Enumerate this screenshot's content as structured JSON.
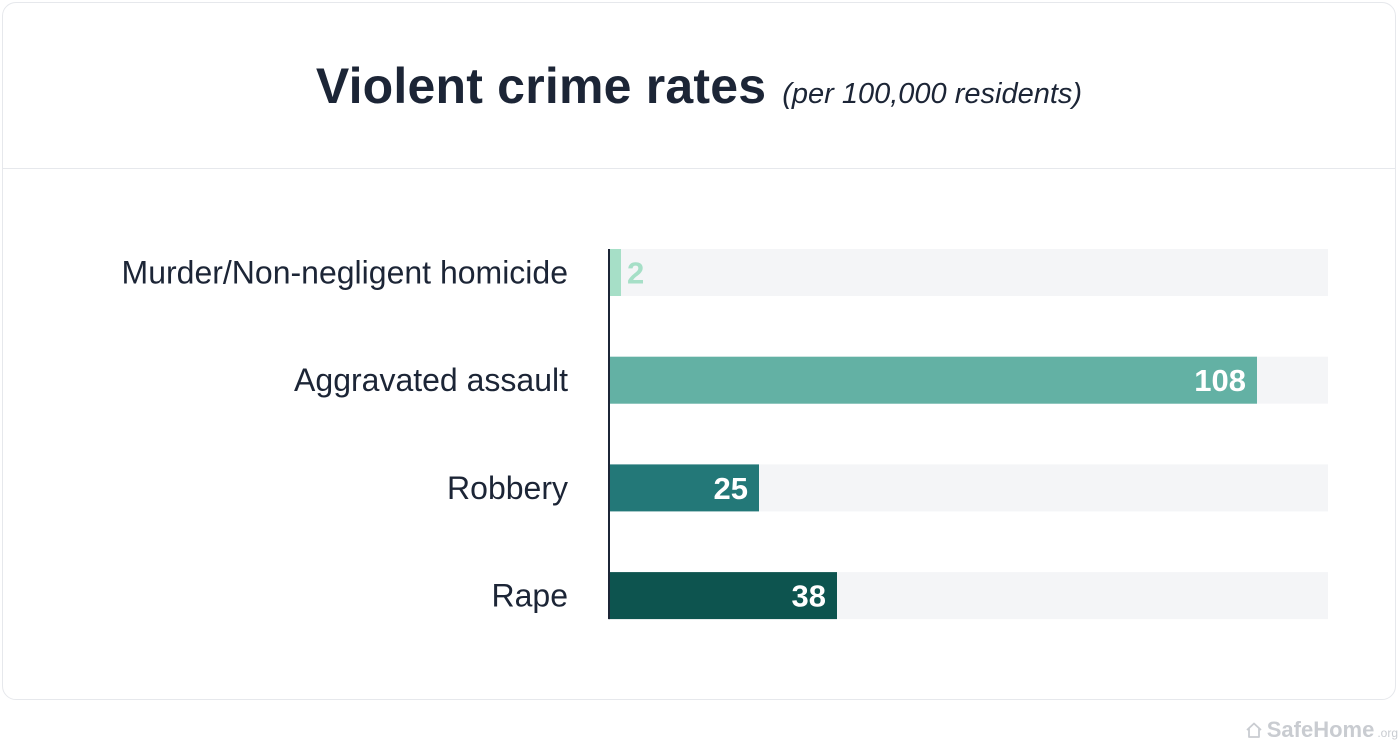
{
  "header": {
    "title": "Violent crime rates",
    "subtitle": "(per 100,000 residents)"
  },
  "chart_data": {
    "type": "bar",
    "orientation": "horizontal",
    "title": "Violent crime rates",
    "subtitle": "(per 100,000 residents)",
    "categories": [
      "Murder/Non-negligent homicide",
      "Aggravated assault",
      "Robbery",
      "Rape"
    ],
    "values": [
      2,
      108,
      25,
      38
    ],
    "value_labels": [
      "2",
      "108",
      "25",
      "38"
    ],
    "colors": [
      "#a6dfc7",
      "#63b1a4",
      "#237878",
      "#0d544f"
    ],
    "label_colors": [
      "#a6dfc7",
      "#ffffff",
      "#ffffff",
      "#ffffff"
    ],
    "track_color": "#f4f5f7",
    "xlim": [
      0,
      120
    ],
    "xlabel": "",
    "ylabel": "",
    "grid": false,
    "legend": "none"
  },
  "brand": {
    "name": "SafeHome",
    "tld": ".org",
    "icon": "house-icon"
  }
}
